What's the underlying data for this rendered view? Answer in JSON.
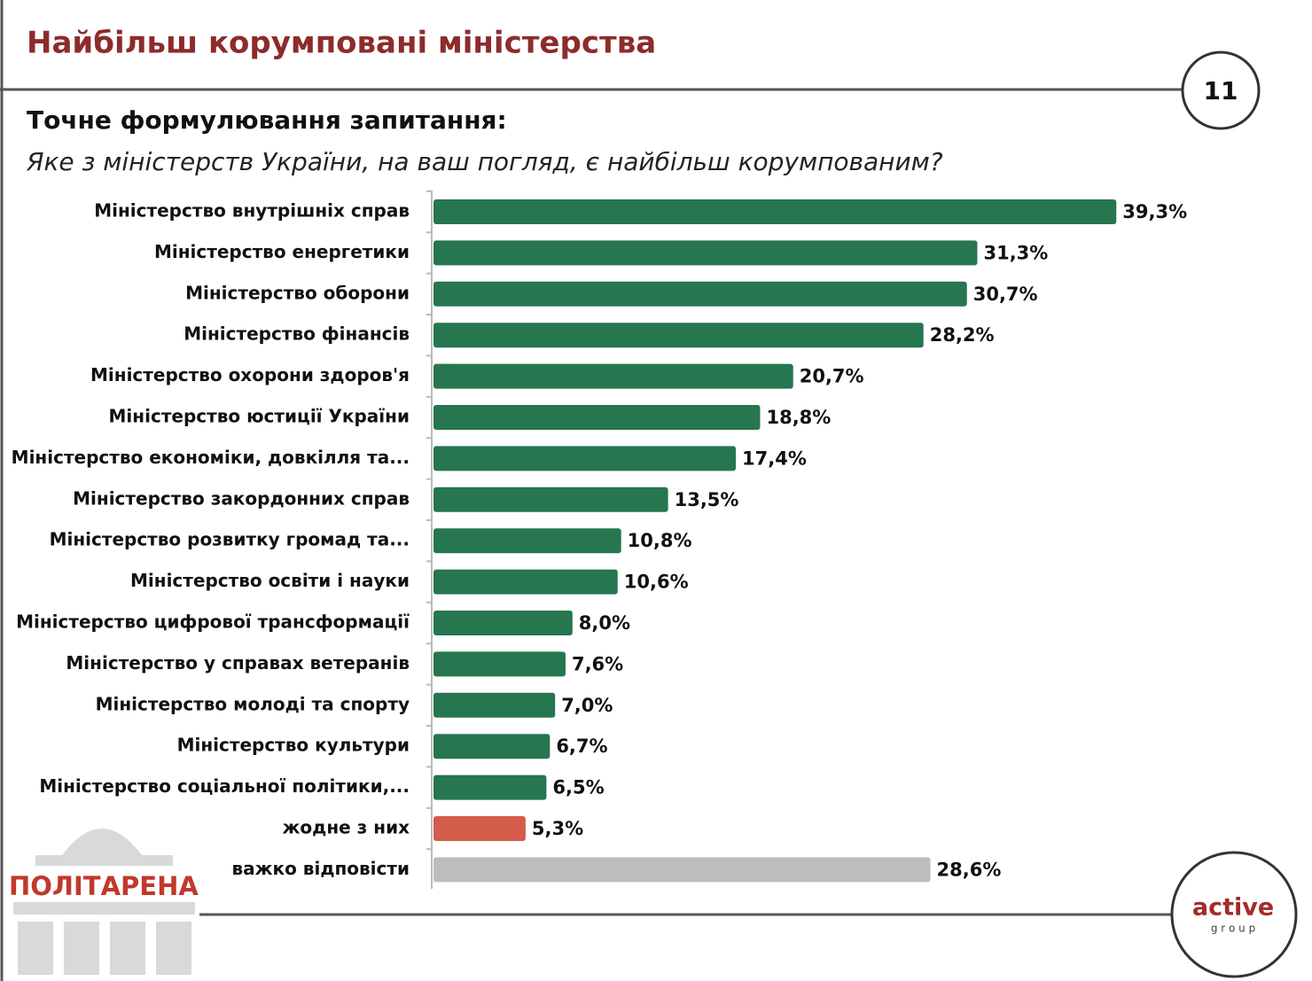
{
  "slide": {
    "title": "Найбільш корумповані міністерства",
    "page_number": "11",
    "subtitle": "Точне формулювання запитання:",
    "question": "Яке з міністерств України, на ваш погляд, є найбільш корумпованим?",
    "logo_left": "ПОЛІТАРЕНА",
    "logo_right": "active",
    "logo_right_sub": "g r o u p"
  },
  "chart_data": {
    "type": "hbar",
    "categories": [
      "Міністерство внутрішніх справ",
      "Міністерство енергетики",
      "Міністерство оборони",
      "Міністерство фінансів",
      "Міністерство охорони здоров'я",
      "Міністерство юстиції України",
      "Міністерство економіки, довкілля та...",
      "Міністерство закордонних справ",
      "Міністерство розвитку громад та...",
      "Міністерство освіти і науки",
      "Міністерство цифрової трансформації",
      "Міністерство у справах ветеранів",
      "Міністерство молоді та спорту",
      "Міністерство культури",
      "Міністерство соціальної політики,...",
      "жодне з них",
      "важко відповісти"
    ],
    "values": [
      39.3,
      31.3,
      30.7,
      28.2,
      20.7,
      18.8,
      17.4,
      13.5,
      10.8,
      10.6,
      8.0,
      7.6,
      7.0,
      6.7,
      6.5,
      5.3,
      28.6
    ],
    "value_labels": [
      "39,3%",
      "31,3%",
      "30,7%",
      "28,2%",
      "20,7%",
      "18,8%",
      "17,4%",
      "13,5%",
      "10,8%",
      "10,6%",
      "8,0%",
      "7,6%",
      "7,0%",
      "6,7%",
      "6,5%",
      "5,3%",
      "28,6%"
    ],
    "colors": [
      "#267650",
      "#267650",
      "#267650",
      "#267650",
      "#267650",
      "#267650",
      "#267650",
      "#267650",
      "#267650",
      "#267650",
      "#267650",
      "#267650",
      "#267650",
      "#267650",
      "#267650",
      "#d35c4a",
      "#bdbdbd"
    ]
  }
}
